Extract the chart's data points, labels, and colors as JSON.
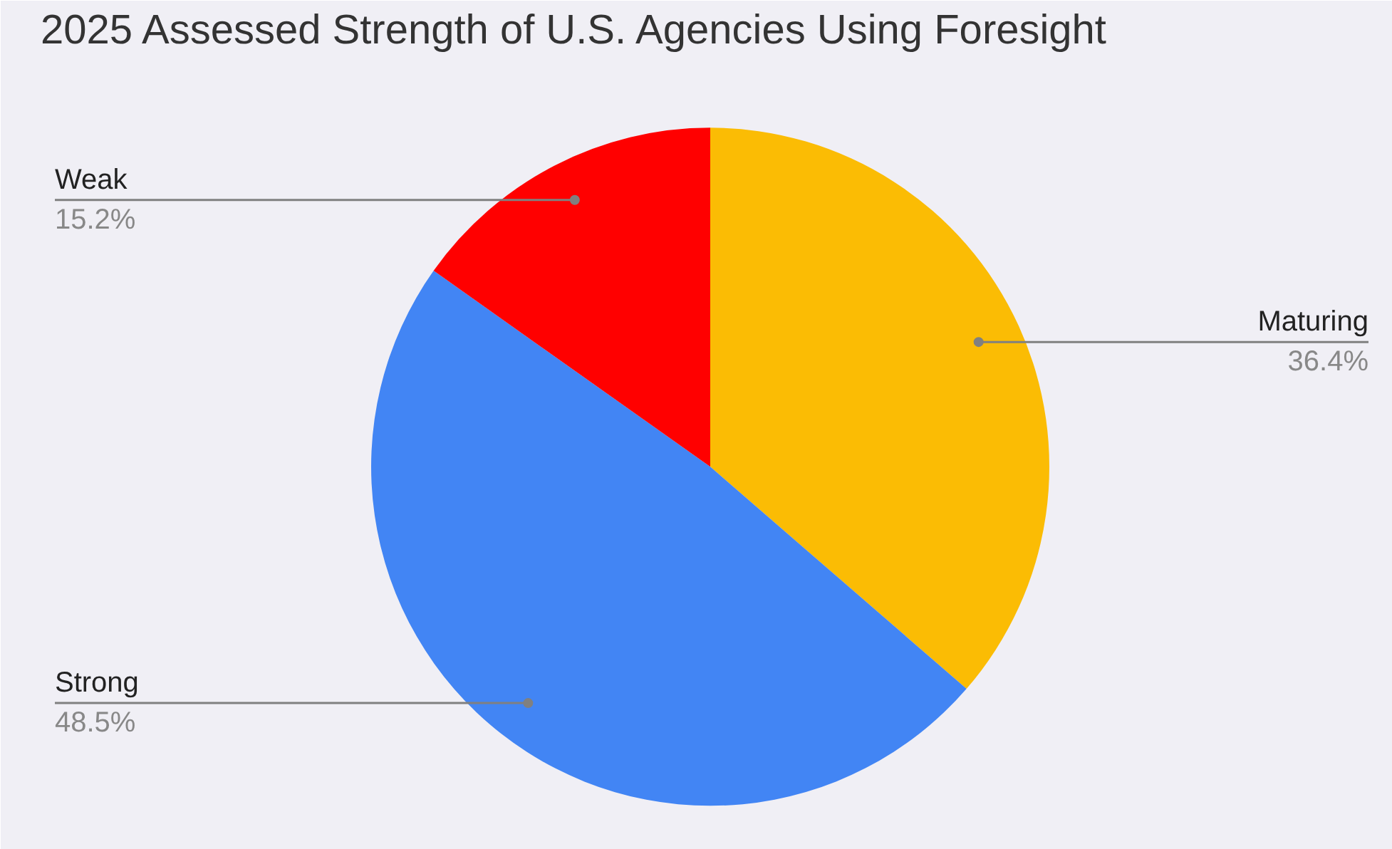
{
  "chart_data": {
    "type": "pie",
    "title": "2025 Assessed Strength of U.S. Agencies Using Foresight",
    "categories": [
      "Maturing",
      "Strong",
      "Weak"
    ],
    "values": [
      36.4,
      48.5,
      15.2
    ],
    "colors": [
      "#fbbc04",
      "#4285f4",
      "#ff0000"
    ],
    "value_labels": [
      "36.4%",
      "48.5%",
      "15.2%"
    ]
  }
}
